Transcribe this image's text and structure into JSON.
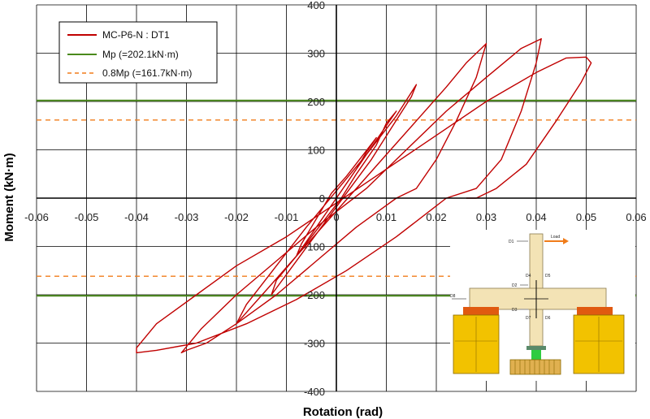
{
  "chart_data": {
    "type": "line",
    "title": "",
    "xlabel": "Rotation (rad)",
    "ylabel": "Moment (kN·m)",
    "xlim": [
      -0.06,
      0.06
    ],
    "ylim": [
      -400,
      400
    ],
    "x_ticks": [
      -0.06,
      -0.05,
      -0.04,
      -0.03,
      -0.02,
      -0.01,
      0,
      0.01,
      0.02,
      0.03,
      0.04,
      0.05,
      0.06
    ],
    "x_tick_labels": [
      "-0.06",
      "-0.05",
      "-0.04",
      "-0.03",
      "-0.02",
      "-0.01",
      "0",
      "0.01",
      "0.02",
      "0.03",
      "0.04",
      "0.05",
      "0.06"
    ],
    "y_ticks": [
      -400,
      -300,
      -200,
      -100,
      0,
      100,
      200,
      300,
      400
    ],
    "y_tick_labels": [
      "-400",
      "-300",
      "-200",
      "-100",
      "0",
      "100",
      "200",
      "300",
      "400"
    ],
    "grid": true,
    "legend_position": "top-left",
    "series": [
      {
        "name": "MC-P6-N : DT1",
        "color": "#c00000",
        "style": "solid",
        "x": [
          0,
          0.002,
          0.004,
          0.006,
          0.008,
          0.005,
          0.002,
          -0.001,
          -0.003,
          -0.005,
          -0.007,
          -0.008,
          -0.005,
          -0.002,
          0.001,
          0.004,
          0.008,
          0.01,
          0.012,
          0.008,
          0.004,
          0.0,
          -0.004,
          -0.008,
          -0.012,
          -0.013,
          -0.008,
          -0.003,
          0.002,
          0.007,
          0.011,
          0.015,
          0.016,
          0.012,
          0.006,
          0.0,
          -0.006,
          -0.012,
          -0.018,
          -0.02,
          -0.014,
          -0.008,
          -0.002,
          0.004,
          0.01,
          0.016,
          0.022,
          0.026,
          0.029,
          0.03,
          0.028,
          0.024,
          0.02,
          0.016,
          0.012,
          0.004,
          -0.004,
          -0.012,
          -0.02,
          -0.026,
          -0.03,
          -0.031,
          -0.027,
          -0.02,
          -0.012,
          -0.004,
          0.006,
          0.014,
          0.022,
          0.03,
          0.037,
          0.041,
          0.04,
          0.037,
          0.033,
          0.028,
          0.022,
          0.012,
          0.002,
          -0.008,
          -0.018,
          -0.028,
          -0.036,
          -0.04,
          -0.04,
          -0.036,
          -0.028,
          -0.02,
          -0.01,
          0.0,
          0.01,
          0.02,
          0.03,
          0.04,
          0.046,
          0.05,
          0.051,
          0.049,
          0.044,
          0.038,
          0.032,
          0.028,
          0.026
        ],
        "y": [
          0,
          30,
          60,
          95,
          125,
          85,
          45,
          10,
          -25,
          -60,
          -95,
          -120,
          -80,
          -40,
          0,
          50,
          110,
          155,
          180,
          120,
          60,
          0,
          -60,
          -120,
          -170,
          -200,
          -130,
          -60,
          10,
          80,
          145,
          210,
          235,
          170,
          90,
          15,
          -60,
          -140,
          -220,
          -260,
          -190,
          -120,
          -50,
          20,
          90,
          160,
          230,
          280,
          310,
          320,
          250,
          160,
          80,
          20,
          0,
          -60,
          -130,
          -200,
          -260,
          -300,
          -315,
          -320,
          -270,
          -200,
          -130,
          -60,
          20,
          100,
          180,
          250,
          310,
          330,
          280,
          180,
          80,
          20,
          0,
          -80,
          -150,
          -210,
          -260,
          -300,
          -315,
          -320,
          -310,
          -260,
          -200,
          -140,
          -80,
          -10,
          60,
          130,
          200,
          260,
          290,
          292,
          280,
          240,
          160,
          70,
          20,
          0,
          0
        ]
      },
      {
        "name": "Mp (=202.1kN·m)",
        "color": "#4a8a1c",
        "style": "solid",
        "y_values": [
          202.1,
          -202.1
        ]
      },
      {
        "name": "0.8Mp (=161.7kN·m)",
        "color": "#f07c1a",
        "style": "dashed",
        "y_values": [
          161.7,
          -161.7
        ]
      }
    ]
  },
  "inset": {
    "labels": {
      "d1": "D1",
      "load": "Load",
      "d2": "D2",
      "d3": "D3",
      "d4": "D4",
      "d5": "D5",
      "d6": "D6",
      "d7": "D7",
      "d8": "D8"
    }
  }
}
